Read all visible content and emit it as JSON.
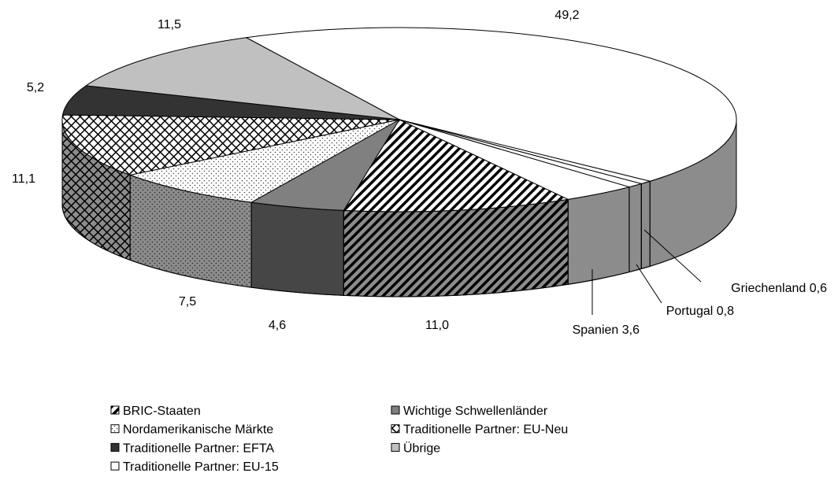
{
  "chart_data": {
    "type": "pie",
    "categories": [
      "BRIC-Staaten",
      "Wichtige Schwellenländer",
      "Nordamerikanische Märkte",
      "Traditionelle Partner: EU-Neu",
      "Traditionelle Partner: EFTA",
      "Übrige",
      "Traditionelle Partner: EU-15"
    ],
    "values": [
      11.0,
      4.6,
      7.5,
      11.1,
      5.2,
      11.5,
      49.2
    ],
    "value_labels": [
      "11,0",
      "4,6",
      "7,5",
      "11,1",
      "5,2",
      "11,5",
      "49,2"
    ],
    "colors": [
      "#ffffff",
      "#808080",
      "#ffffff",
      "#ffffff",
      "#333333",
      "#c0c0c0",
      "#ffffff"
    ],
    "patterns": [
      "diagonal",
      null,
      "dots",
      "crosshatch",
      null,
      null,
      null
    ],
    "breakdown": {
      "categories": [
        "Griechenland",
        "Portugal",
        "Spanien"
      ],
      "values": [
        0.6,
        0.8,
        3.6
      ],
      "value_labels": [
        "0,6",
        "0,8",
        "3,6"
      ],
      "color": "#ffffff"
    }
  }
}
